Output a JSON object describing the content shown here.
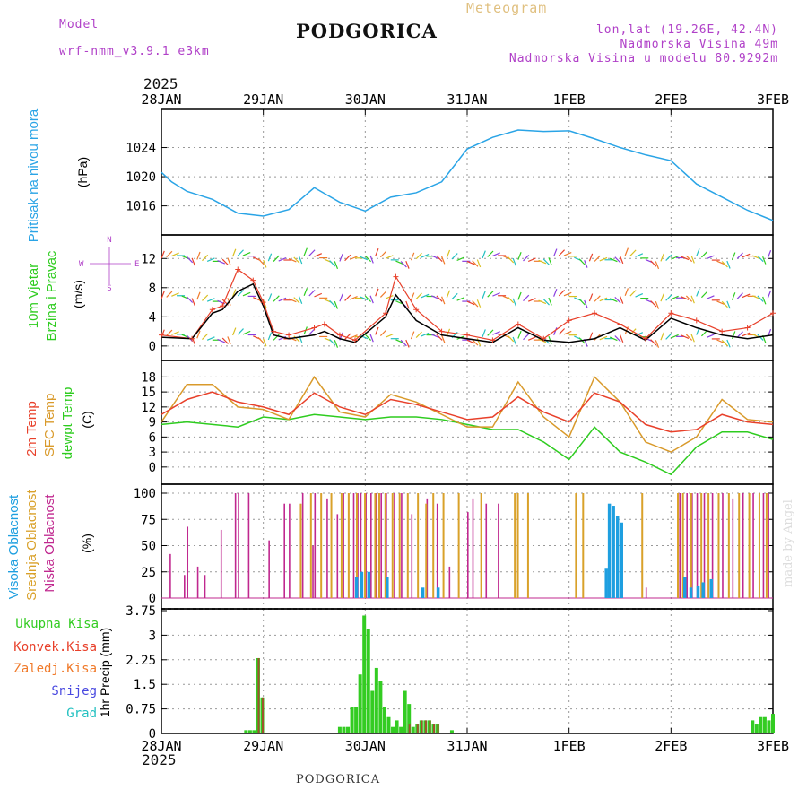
{
  "header": {
    "model_label": "Model",
    "model_name": "wrf-nmm_v3.9.1  e3km",
    "title": "PODGORICA",
    "product": "Meteogram",
    "lonlat": "lon,lat (19.26E, 42.4N)",
    "elevation": "Nadmorska Visina 49m",
    "model_elevation": "Nadmorska Visina u modelu 80.9292m",
    "footer": "PODGORICA",
    "credit": "made by Angel",
    "year_top": "2025",
    "year_bottom": "2025"
  },
  "colors": {
    "pressure": "#2aa4e6",
    "temp2m": "#e8402a",
    "sfc_temp": "#d99a2b",
    "dewpt": "#2ecc1f",
    "high_cloud": "#1e9fe0",
    "mid_cloud": "#d9a12a",
    "low_cloud": "#c0288f",
    "precip_total": "#33cc22",
    "precip_conv": "#e8402a",
    "precip_frozen": "#f07a2a",
    "snow": "#4a4ae0",
    "graupel": "#22c0c0",
    "title_purple": "#b040c8"
  },
  "chart_data": [
    {
      "type": "line",
      "name": "pressure",
      "ylabel_main": "Pritisak na nivou mora",
      "ylabel_unit": "(hPa)",
      "x_dates": [
        "28JAN",
        "29JAN",
        "30JAN",
        "31JAN",
        "1FEB",
        "2FEB",
        "3FEB"
      ],
      "yticks": [
        1016,
        1020,
        1024
      ],
      "ylim": [
        1013,
        1028
      ],
      "x": [
        0,
        0.1,
        0.25,
        0.5,
        0.75,
        1.0,
        1.25,
        1.5,
        1.75,
        2.0,
        2.25,
        2.5,
        2.75,
        3.0,
        3.25,
        3.5,
        3.75,
        4.0,
        4.25,
        4.5,
        4.75,
        5.0,
        5.25,
        5.5,
        5.75,
        6.0
      ],
      "values": [
        1020.6,
        1019.3,
        1018.0,
        1016.9,
        1015.0,
        1014.6,
        1015.5,
        1018.5,
        1016.5,
        1015.3,
        1017.2,
        1017.8,
        1019.3,
        1023.8,
        1025.4,
        1026.4,
        1026.2,
        1026.3,
        1025.2,
        1024.0,
        1023.0,
        1022.2,
        1019.0,
        1017.2,
        1015.4,
        1014.0
      ]
    },
    {
      "type": "line",
      "name": "wind",
      "ylabel_main": "10m Vjetar",
      "ylabel_sub": "Brzina i Pravac",
      "ylabel_unit": "(m/s)",
      "compass_n": "N",
      "compass_s": "S",
      "compass_w": "W",
      "compass_e": "E",
      "yticks": [
        0,
        4,
        8,
        12
      ],
      "ylim": [
        -1,
        14
      ],
      "x": [
        0,
        0.3,
        0.5,
        0.6,
        0.75,
        0.9,
        1.0,
        1.1,
        1.25,
        1.5,
        1.6,
        1.75,
        1.9,
        2.2,
        2.3,
        2.5,
        2.75,
        3.0,
        3.25,
        3.5,
        3.75,
        4.0,
        4.25,
        4.5,
        4.75,
        5.0,
        5.25,
        5.5,
        5.75,
        6.0
      ],
      "values": [
        1.2,
        1.0,
        4.5,
        5.0,
        7.5,
        8.5,
        5.5,
        1.5,
        1.0,
        1.5,
        2.0,
        1.0,
        0.5,
        4.0,
        7.0,
        3.5,
        1.5,
        1.0,
        0.5,
        2.5,
        0.8,
        0.5,
        1.0,
        2.5,
        0.8,
        3.8,
        2.5,
        1.5,
        1.0,
        1.5
      ],
      "gust": [
        1.5,
        1.0,
        5.0,
        5.5,
        10.5,
        9.0,
        6.0,
        2.0,
        1.5,
        2.5,
        3.0,
        1.5,
        0.8,
        4.5,
        9.5,
        5.0,
        2.0,
        1.5,
        0.8,
        3.0,
        1.0,
        3.5,
        4.5,
        3.0,
        1.0,
        4.5,
        3.5,
        2.0,
        2.5,
        4.5
      ]
    },
    {
      "type": "line",
      "name": "temperature",
      "ylabel_a": "2m Temp",
      "ylabel_b": "SFC Temp",
      "ylabel_c": "dewpt Temp",
      "ylabel_unit": "(C)",
      "yticks": [
        0,
        3,
        6,
        9,
        12,
        15,
        18
      ],
      "ylim": [
        -2,
        19.5
      ],
      "x": [
        0,
        0.25,
        0.5,
        0.75,
        1.0,
        1.25,
        1.5,
        1.75,
        2.0,
        2.25,
        2.5,
        2.75,
        3.0,
        3.25,
        3.5,
        3.75,
        4.0,
        4.25,
        4.5,
        4.75,
        5.0,
        5.25,
        5.5,
        5.75,
        6.0
      ],
      "temp2m": [
        10.5,
        13.5,
        15.0,
        13.0,
        12.0,
        10.5,
        14.8,
        12.0,
        10.5,
        13.5,
        12.5,
        11.0,
        9.5,
        10.0,
        14.0,
        11.0,
        9.0,
        14.8,
        13.0,
        8.5,
        7.0,
        7.5,
        10.5,
        9.0,
        8.5
      ],
      "sfc_temp": [
        9.0,
        16.5,
        16.5,
        12.0,
        11.5,
        9.5,
        18.0,
        11.0,
        10.0,
        14.5,
        13.0,
        10.5,
        8.0,
        8.0,
        17.0,
        10.0,
        6.0,
        18.0,
        13.0,
        5.0,
        3.0,
        6.0,
        13.5,
        9.5,
        9.0
      ],
      "dewpt": [
        8.5,
        9.0,
        8.5,
        8.0,
        10.0,
        9.5,
        10.5,
        10.0,
        9.5,
        10.0,
        10.0,
        9.5,
        8.5,
        7.5,
        7.5,
        5.0,
        1.5,
        8.0,
        3.0,
        1.0,
        -1.5,
        4.0,
        7.0,
        7.0,
        5.5
      ]
    },
    {
      "type": "bar",
      "name": "cloud",
      "ylabel_a": "Visoka Oblacnost",
      "ylabel_b": "Srednja Oblacnost",
      "ylabel_c": "Niska  Oblacnost",
      "ylabel_unit": "(%)",
      "yticks": [
        0,
        25,
        50,
        75,
        100
      ],
      "ylim": [
        0,
        100
      ],
      "low": [
        [
          0.08,
          42
        ],
        [
          0.22,
          22
        ],
        [
          0.25,
          68
        ],
        [
          0.35,
          30
        ],
        [
          0.42,
          22
        ],
        [
          0.58,
          65
        ],
        [
          0.72,
          100
        ],
        [
          0.75,
          100
        ],
        [
          0.85,
          100
        ],
        [
          1.05,
          55
        ],
        [
          1.2,
          90
        ],
        [
          1.25,
          90
        ],
        [
          1.38,
          100
        ],
        [
          1.48,
          50
        ],
        [
          1.5,
          100
        ],
        [
          1.62,
          95
        ],
        [
          1.72,
          80
        ],
        [
          1.78,
          100
        ],
        [
          1.88,
          100
        ],
        [
          1.92,
          100
        ],
        [
          1.95,
          100
        ],
        [
          2.0,
          100
        ],
        [
          2.05,
          100
        ],
        [
          2.1,
          100
        ],
        [
          2.15,
          100
        ],
        [
          2.2,
          100
        ],
        [
          2.28,
          100
        ],
        [
          2.35,
          100
        ],
        [
          2.45,
          80
        ],
        [
          2.6,
          95
        ],
        [
          2.7,
          90
        ],
        [
          2.82,
          30
        ],
        [
          3.0,
          82
        ],
        [
          3.05,
          95
        ],
        [
          3.18,
          90
        ],
        [
          3.3,
          90
        ],
        [
          4.75,
          10
        ],
        [
          5.08,
          100
        ],
        [
          5.15,
          100
        ],
        [
          5.2,
          100
        ],
        [
          5.25,
          100
        ],
        [
          5.32,
          100
        ],
        [
          5.4,
          100
        ],
        [
          5.5,
          100
        ],
        [
          5.6,
          95
        ],
        [
          5.7,
          100
        ],
        [
          5.8,
          100
        ],
        [
          5.9,
          100
        ],
        [
          5.95,
          100
        ]
      ],
      "mid": [
        [
          1.35,
          90
        ],
        [
          1.45,
          100
        ],
        [
          1.55,
          100
        ],
        [
          1.65,
          100
        ],
        [
          1.75,
          100
        ],
        [
          1.82,
          100
        ],
        [
          1.9,
          100
        ],
        [
          1.98,
          100
        ],
        [
          2.08,
          100
        ],
        [
          2.12,
          100
        ],
        [
          2.18,
          100
        ],
        [
          2.25,
          100
        ],
        [
          2.32,
          100
        ],
        [
          2.4,
          100
        ],
        [
          2.5,
          100
        ],
        [
          2.58,
          90
        ],
        [
          2.65,
          100
        ],
        [
          2.75,
          100
        ],
        [
          2.9,
          100
        ],
        [
          3.12,
          100
        ],
        [
          3.45,
          100
        ],
        [
          3.48,
          100
        ],
        [
          3.58,
          100
        ],
        [
          4.05,
          100
        ],
        [
          4.12,
          100
        ],
        [
          4.7,
          100
        ],
        [
          5.05,
          100
        ],
        [
          5.1,
          100
        ],
        [
          5.18,
          100
        ],
        [
          5.28,
          100
        ],
        [
          5.35,
          100
        ],
        [
          5.45,
          100
        ],
        [
          5.55,
          100
        ],
        [
          5.65,
          100
        ],
        [
          5.75,
          100
        ],
        [
          5.85,
          100
        ],
        [
          5.92,
          100
        ]
      ],
      "high": [
        [
          1.9,
          20
        ],
        [
          1.95,
          25
        ],
        [
          2.02,
          25
        ],
        [
          2.2,
          20
        ],
        [
          2.55,
          10
        ],
        [
          2.7,
          10
        ],
        [
          4.35,
          28
        ],
        [
          4.38,
          90
        ],
        [
          4.42,
          88
        ],
        [
          4.46,
          78
        ],
        [
          4.5,
          72
        ],
        [
          5.12,
          20
        ],
        [
          5.18,
          10
        ],
        [
          5.25,
          12
        ],
        [
          5.3,
          15
        ],
        [
          5.38,
          18
        ]
      ]
    },
    {
      "type": "bar",
      "name": "precip",
      "ylabel_a": "Ukupna  Kisa",
      "ylabel_b": "Konvek.Kisa",
      "ylabel_c": "Zaledj.Kisa",
      "ylabel_d": "Snijeg",
      "ylabel_e": "Grad",
      "ylabel_unit": "1hr Precip (mm)",
      "ytick_labels": [
        "0",
        "0.75",
        "1.5",
        "2.25",
        "3",
        "3.75"
      ],
      "yticks": [
        0,
        0.75,
        1.5,
        2.25,
        3,
        3.75
      ],
      "ylim": [
        0,
        3.75
      ],
      "total": [
        [
          0.83,
          0.1
        ],
        [
          0.87,
          0.1
        ],
        [
          0.91,
          0.1
        ],
        [
          0.95,
          2.3
        ],
        [
          0.99,
          1.1
        ],
        [
          1.75,
          0.2
        ],
        [
          1.79,
          0.2
        ],
        [
          1.83,
          0.2
        ],
        [
          1.87,
          0.8
        ],
        [
          1.91,
          0.8
        ],
        [
          1.95,
          1.8
        ],
        [
          1.99,
          3.6
        ],
        [
          2.03,
          3.2
        ],
        [
          2.07,
          1.3
        ],
        [
          2.11,
          2.0
        ],
        [
          2.15,
          1.6
        ],
        [
          2.19,
          0.8
        ],
        [
          2.23,
          0.5
        ],
        [
          2.27,
          0.2
        ],
        [
          2.31,
          0.4
        ],
        [
          2.35,
          0.2
        ],
        [
          2.39,
          1.3
        ],
        [
          2.43,
          0.9
        ],
        [
          2.47,
          0.2
        ],
        [
          2.51,
          0.3
        ],
        [
          2.55,
          0.4
        ],
        [
          2.59,
          0.4
        ],
        [
          2.63,
          0.4
        ],
        [
          2.67,
          0.3
        ],
        [
          2.71,
          0.3
        ],
        [
          2.85,
          0.1
        ],
        [
          5.8,
          0.4
        ],
        [
          5.84,
          0.3
        ],
        [
          5.88,
          0.5
        ],
        [
          5.92,
          0.5
        ],
        [
          5.96,
          0.4
        ],
        [
          6.0,
          0.6
        ]
      ],
      "conv": [
        [
          0.95,
          2.3
        ],
        [
          0.99,
          1.1
        ],
        [
          2.43,
          0.3
        ],
        [
          2.51,
          0.3
        ],
        [
          2.55,
          0.4
        ],
        [
          2.59,
          0.4
        ],
        [
          2.63,
          0.4
        ],
        [
          2.67,
          0.3
        ],
        [
          2.71,
          0.3
        ]
      ]
    }
  ]
}
